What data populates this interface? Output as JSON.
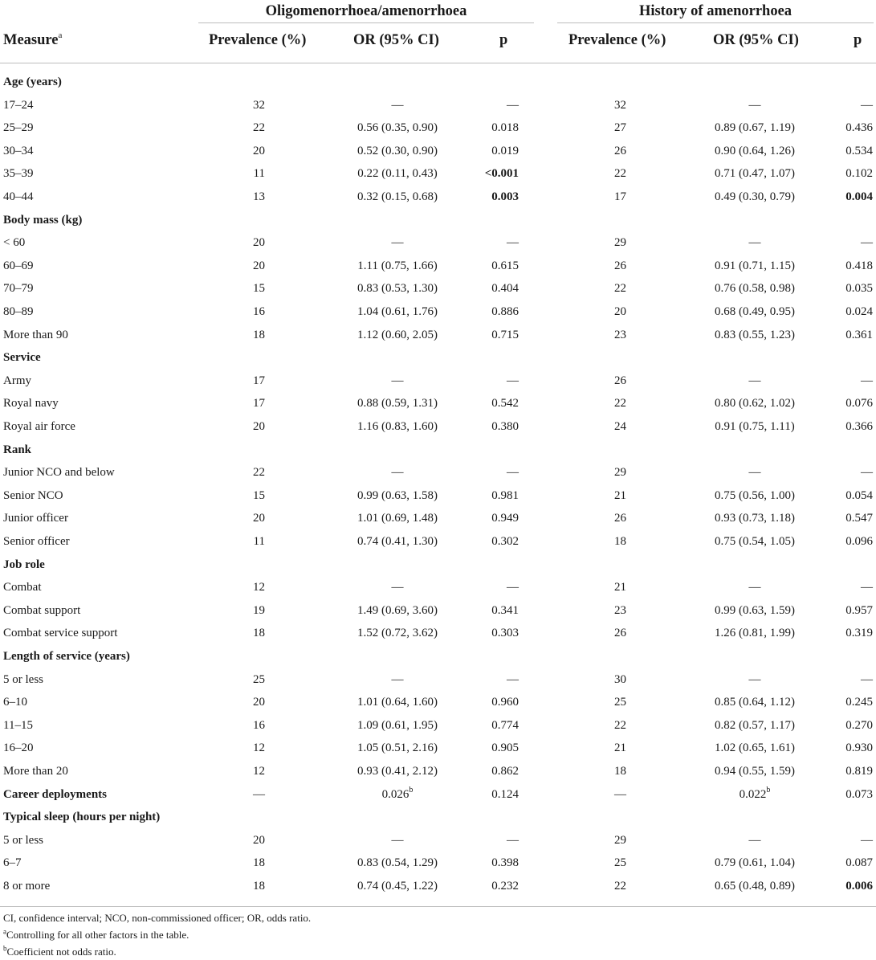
{
  "table": {
    "group_headers": [
      "Oligomenorrhoea/amenorrhoea",
      "History of amenorrhoea"
    ],
    "columns": {
      "measure": "Measure",
      "measure_sup": "a",
      "prevalence": "Prevalence (%)",
      "or": "OR (95% CI)",
      "p": "p"
    },
    "rows": [
      {
        "type": "section",
        "label": "Age (years)"
      },
      {
        "label": "17–24",
        "prev1": "32",
        "or1": "—",
        "p1": "—",
        "prev2": "32",
        "or2": "—",
        "p2": "—"
      },
      {
        "label": "25–29",
        "prev1": "22",
        "or1": "0.56 (0.35, 0.90)",
        "p1": "0.018",
        "prev2": "27",
        "or2": "0.89 (0.67, 1.19)",
        "p2": "0.436"
      },
      {
        "label": "30–34",
        "prev1": "20",
        "or1": "0.52 (0.30, 0.90)",
        "p1": "0.019",
        "prev2": "26",
        "or2": "0.90 (0.64, 1.26)",
        "p2": "0.534"
      },
      {
        "label": "35–39",
        "prev1": "11",
        "or1": "0.22 (0.11, 0.43)",
        "p1": "<0.001",
        "p1_bold": true,
        "prev2": "22",
        "or2": "0.71 (0.47, 1.07)",
        "p2": "0.102"
      },
      {
        "label": "40–44",
        "prev1": "13",
        "or1": "0.32 (0.15, 0.68)",
        "p1": "0.003",
        "p1_bold": true,
        "prev2": "17",
        "or2": "0.49 (0.30, 0.79)",
        "p2": "0.004",
        "p2_bold": true
      },
      {
        "type": "section",
        "label": "Body mass (kg)"
      },
      {
        "label": "< 60",
        "prev1": "20",
        "or1": "—",
        "p1": "—",
        "prev2": "29",
        "or2": "—",
        "p2": "—"
      },
      {
        "label": "60–69",
        "prev1": "20",
        "or1": "1.11 (0.75, 1.66)",
        "p1": "0.615",
        "prev2": "26",
        "or2": "0.91 (0.71, 1.15)",
        "p2": "0.418"
      },
      {
        "label": "70–79",
        "prev1": "15",
        "or1": "0.83 (0.53, 1.30)",
        "p1": "0.404",
        "prev2": "22",
        "or2": "0.76 (0.58, 0.98)",
        "p2": "0.035"
      },
      {
        "label": "80–89",
        "prev1": "16",
        "or1": "1.04 (0.61, 1.76)",
        "p1": "0.886",
        "prev2": "20",
        "or2": "0.68 (0.49, 0.95)",
        "p2": "0.024"
      },
      {
        "label": "More than 90",
        "prev1": "18",
        "or1": "1.12 (0.60, 2.05)",
        "p1": "0.715",
        "prev2": "23",
        "or2": "0.83 (0.55, 1.23)",
        "p2": "0.361"
      },
      {
        "type": "section",
        "label": "Service"
      },
      {
        "label": "Army",
        "prev1": "17",
        "or1": "—",
        "p1": "—",
        "prev2": "26",
        "or2": "—",
        "p2": "—"
      },
      {
        "label": "Royal navy",
        "prev1": "17",
        "or1": "0.88 (0.59, 1.31)",
        "p1": "0.542",
        "prev2": "22",
        "or2": "0.80 (0.62, 1.02)",
        "p2": "0.076"
      },
      {
        "label": "Royal air force",
        "prev1": "20",
        "or1": "1.16 (0.83, 1.60)",
        "p1": "0.380",
        "prev2": "24",
        "or2": "0.91 (0.75, 1.11)",
        "p2": "0.366"
      },
      {
        "type": "section",
        "label": "Rank"
      },
      {
        "label": "Junior NCO and below",
        "prev1": "22",
        "or1": "—",
        "p1": "—",
        "prev2": "29",
        "or2": "—",
        "p2": "—"
      },
      {
        "label": "Senior NCO",
        "prev1": "15",
        "or1": "0.99 (0.63, 1.58)",
        "p1": "0.981",
        "prev2": "21",
        "or2": "0.75 (0.56, 1.00)",
        "p2": "0.054"
      },
      {
        "label": "Junior officer",
        "prev1": "20",
        "or1": "1.01 (0.69, 1.48)",
        "p1": "0.949",
        "prev2": "26",
        "or2": "0.93 (0.73, 1.18)",
        "p2": "0.547"
      },
      {
        "label": "Senior officer",
        "prev1": "11",
        "or1": "0.74 (0.41, 1.30)",
        "p1": "0.302",
        "prev2": "18",
        "or2": "0.75 (0.54, 1.05)",
        "p2": "0.096"
      },
      {
        "type": "section",
        "label": "Job role"
      },
      {
        "label": "Combat",
        "prev1": "12",
        "or1": "—",
        "p1": "—",
        "prev2": "21",
        "or2": "—",
        "p2": "—"
      },
      {
        "label": "Combat support",
        "prev1": "19",
        "or1": "1.49 (0.69, 3.60)",
        "p1": "0.341",
        "prev2": "23",
        "or2": "0.99 (0.63, 1.59)",
        "p2": "0.957"
      },
      {
        "label": "Combat service support",
        "prev1": "18",
        "or1": "1.52 (0.72, 3.62)",
        "p1": "0.303",
        "prev2": "26",
        "or2": "1.26 (0.81, 1.99)",
        "p2": "0.319"
      },
      {
        "type": "section",
        "label": "Length of service (years)"
      },
      {
        "label": "5 or less",
        "prev1": "25",
        "or1": "—",
        "p1": "—",
        "prev2": "30",
        "or2": "—",
        "p2": "—"
      },
      {
        "label": "6–10",
        "prev1": "20",
        "or1": "1.01 (0.64, 1.60)",
        "p1": "0.960",
        "prev2": "25",
        "or2": "0.85 (0.64, 1.12)",
        "p2": "0.245"
      },
      {
        "label": "11–15",
        "prev1": "16",
        "or1": "1.09 (0.61, 1.95)",
        "p1": "0.774",
        "prev2": "22",
        "or2": "0.82 (0.57, 1.17)",
        "p2": "0.270"
      },
      {
        "label": "16–20",
        "prev1": "12",
        "or1": "1.05 (0.51, 2.16)",
        "p1": "0.905",
        "prev2": "21",
        "or2": "1.02 (0.65, 1.61)",
        "p2": "0.930"
      },
      {
        "label": "More than 20",
        "prev1": "12",
        "or1": "0.93 (0.41, 2.12)",
        "p1": "0.862",
        "prev2": "18",
        "or2": "0.94 (0.55, 1.59)",
        "p2": "0.819"
      },
      {
        "type": "section",
        "label": "Career deployments",
        "prev1": "—",
        "or1": "0.026",
        "or1_sup": "b",
        "p1": "0.124",
        "prev2": "—",
        "or2": "0.022",
        "or2_sup": "b",
        "p2": "0.073"
      },
      {
        "type": "section",
        "label": "Typical sleep (hours per night)"
      },
      {
        "label": "5 or less",
        "prev1": "20",
        "or1": "—",
        "p1": "—",
        "prev2": "29",
        "or2": "—",
        "p2": "—"
      },
      {
        "label": "6–7",
        "prev1": "18",
        "or1": "0.83 (0.54, 1.29)",
        "p1": "0.398",
        "prev2": "25",
        "or2": "0.79 (0.61, 1.04)",
        "p2": "0.087"
      },
      {
        "label": "8 or more",
        "prev1": "18",
        "or1": "0.74 (0.45, 1.22)",
        "p1": "0.232",
        "prev2": "22",
        "or2": "0.65 (0.48, 0.89)",
        "p2": "0.006",
        "p2_bold": true
      }
    ]
  },
  "footnotes": [
    {
      "sup": "",
      "text": "CI, confidence interval; NCO, non-commissioned officer; OR, odds ratio."
    },
    {
      "sup": "a",
      "text": "Controlling for all other factors in the table."
    },
    {
      "sup": "b",
      "text": "Coefficient not odds ratio."
    }
  ]
}
